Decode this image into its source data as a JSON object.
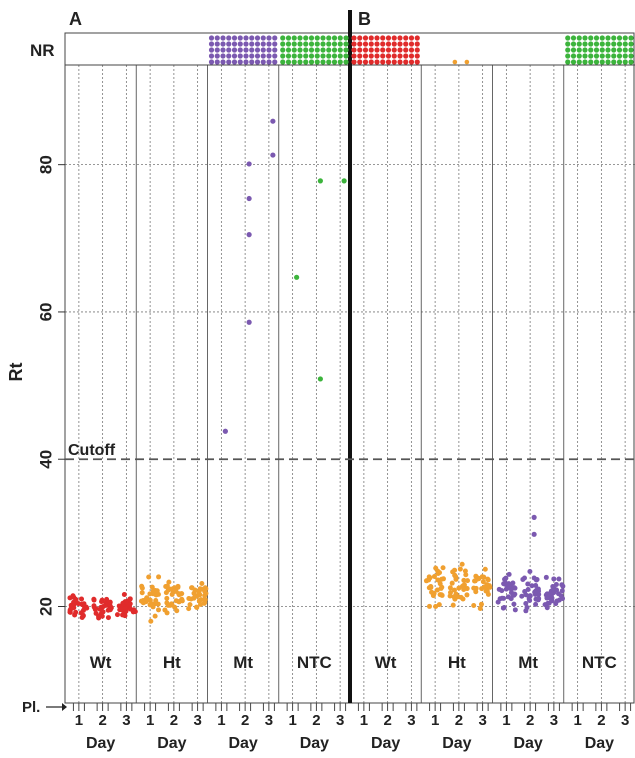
{
  "chart_data": {
    "type": "scatter",
    "ylabel": "Rt",
    "ylim": [
      10,
      95
    ],
    "y_ticks": [
      20,
      40,
      60,
      80
    ],
    "nr_label": "NR",
    "plate_label": "Pl.",
    "day_label": "Day",
    "day_ticks": [
      "1",
      "2",
      "3"
    ],
    "cutoff": {
      "label": "Cutoff",
      "value": 40
    },
    "grid": true,
    "colors": {
      "Wt": "#e02b2b",
      "Ht": "#f0a030",
      "Mt": "#7b59b0",
      "NTC": "#3cb43c"
    },
    "panels": [
      {
        "label": "A",
        "groups": [
          {
            "name": "Wt",
            "nr_count": 0,
            "cluster": {
              "center": 19.8,
              "spread": 1.3,
              "count": 95
            },
            "points": []
          },
          {
            "name": "Ht",
            "nr_count": 0,
            "cluster": {
              "center": 21.5,
              "spread": 1.9,
              "count": 95
            },
            "points": []
          },
          {
            "name": "Mt",
            "nr_count": 60,
            "cluster": null,
            "points": [
              {
                "day": 1,
                "rt": 43.8
              },
              {
                "day": 2,
                "rt": 58.6
              },
              {
                "day": 2,
                "rt": 70.5
              },
              {
                "day": 2,
                "rt": 80.1
              },
              {
                "day": 2,
                "rt": 75.4
              },
              {
                "day": 3,
                "rt": 85.9
              },
              {
                "day": 3,
                "rt": 81.3
              }
            ]
          },
          {
            "name": "NTC",
            "nr_count": 60,
            "cluster": null,
            "points": [
              {
                "day": 1,
                "rt": 64.7
              },
              {
                "day": 2,
                "rt": 50.9
              },
              {
                "day": 2,
                "rt": 77.8
              },
              {
                "day": 3,
                "rt": 77.8
              }
            ]
          }
        ]
      },
      {
        "label": "B",
        "groups": [
          {
            "name": "Wt",
            "nr_count": 60,
            "cluster": null,
            "points": []
          },
          {
            "name": "Ht",
            "nr_count": 2,
            "cluster": {
              "center": 22.8,
              "spread": 2.6,
              "count": 95
            },
            "points": []
          },
          {
            "name": "Mt",
            "nr_count": 0,
            "cluster": {
              "center": 21.8,
              "spread": 2.1,
              "count": 100
            },
            "points": [
              {
                "day": 2,
                "rt": 32.1
              },
              {
                "day": 2,
                "rt": 29.8
              }
            ]
          },
          {
            "name": "NTC",
            "nr_count": 60,
            "cluster": null,
            "points": []
          }
        ]
      }
    ]
  }
}
